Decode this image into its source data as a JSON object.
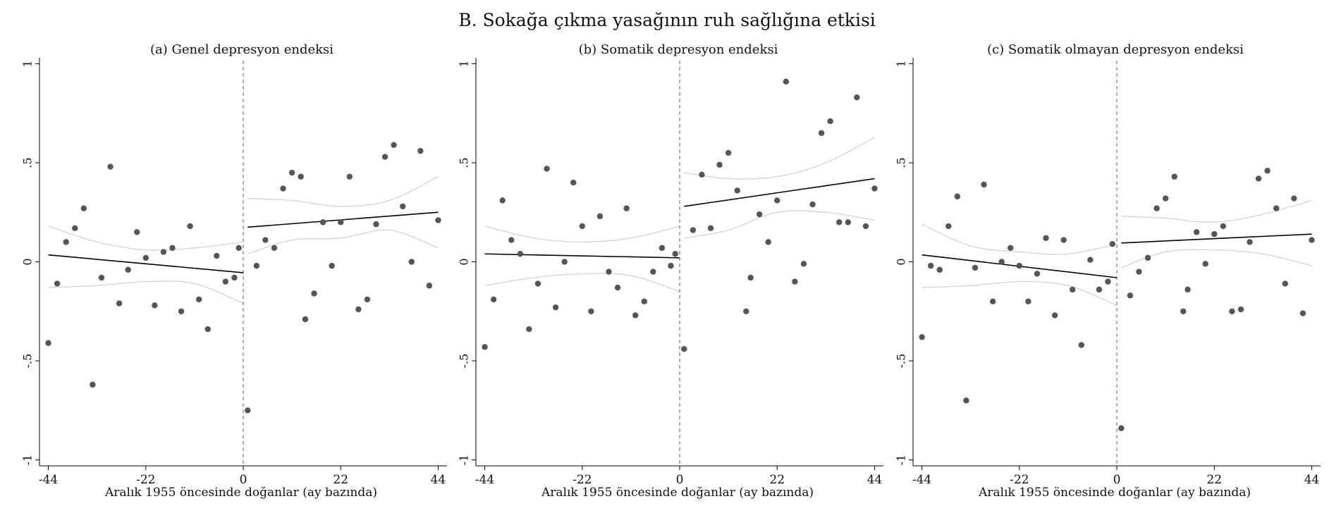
{
  "title": "B. Sokağa çıkma yasağının ruh sağlığına etkisi",
  "colors": {
    "points": "#555555",
    "fit": "#000000",
    "ci": "#d3d3d3",
    "axis": "#000000",
    "cutoff": "#777777"
  },
  "chart_data": [
    {
      "type": "scatter",
      "title": "(a) Genel depresyon endeksi",
      "xlabel": "Aralık 1955 öncesinde doğanlar (ay bazında)",
      "ylabel": "",
      "xlim": [
        -46,
        46
      ],
      "ylim": [
        -1.03,
        1.03
      ],
      "xticks": [
        "-44",
        "-22",
        "0",
        "22",
        "44"
      ],
      "yticks": [
        "-1",
        "-.5",
        "0",
        ".5",
        "1"
      ],
      "cutoff": 0,
      "points": [
        [
          -44,
          -0.41
        ],
        [
          -42,
          -0.11
        ],
        [
          -40,
          0.1
        ],
        [
          -38,
          0.17
        ],
        [
          -36,
          0.27
        ],
        [
          -34,
          -0.62
        ],
        [
          -32,
          -0.08
        ],
        [
          -30,
          0.48
        ],
        [
          -28,
          -0.21
        ],
        [
          -26,
          -0.04
        ],
        [
          -24,
          0.15
        ],
        [
          -22,
          0.02
        ],
        [
          -20,
          -0.22
        ],
        [
          -18,
          0.05
        ],
        [
          -16,
          0.07
        ],
        [
          -14,
          -0.25
        ],
        [
          -12,
          0.18
        ],
        [
          -10,
          -0.19
        ],
        [
          -8,
          -0.34
        ],
        [
          -6,
          0.03
        ],
        [
          -4,
          -0.1
        ],
        [
          -2,
          -0.08
        ],
        [
          -1,
          0.07
        ],
        [
          1,
          -0.75
        ],
        [
          3,
          -0.02
        ],
        [
          5,
          0.11
        ],
        [
          7,
          0.07
        ],
        [
          9,
          0.37
        ],
        [
          11,
          0.45
        ],
        [
          13,
          0.43
        ],
        [
          14,
          -0.29
        ],
        [
          16,
          -0.16
        ],
        [
          18,
          0.2
        ],
        [
          20,
          -0.02
        ],
        [
          22,
          0.2
        ],
        [
          24,
          0.43
        ],
        [
          26,
          -0.24
        ],
        [
          28,
          -0.19
        ],
        [
          30,
          0.19
        ],
        [
          32,
          0.53
        ],
        [
          34,
          0.59
        ],
        [
          36,
          0.28
        ],
        [
          38,
          0.0
        ],
        [
          40,
          0.56
        ],
        [
          42,
          -0.12
        ],
        [
          44,
          0.21
        ]
      ],
      "fit_left": [
        [
          -44,
          0.035
        ],
        [
          0,
          -0.055
        ]
      ],
      "fit_right": [
        [
          1,
          0.175
        ],
        [
          44,
          0.25
        ]
      ],
      "ci_left_upper": [
        [
          -44,
          0.18
        ],
        [
          -33,
          0.1
        ],
        [
          -22,
          0.06
        ],
        [
          -11,
          0.07
        ],
        [
          0,
          0.1
        ]
      ],
      "ci_left_lower": [
        [
          -44,
          -0.13
        ],
        [
          -33,
          -0.12
        ],
        [
          -22,
          -0.1
        ],
        [
          -11,
          -0.11
        ],
        [
          0,
          -0.21
        ]
      ],
      "ci_right_upper": [
        [
          1,
          0.32
        ],
        [
          11,
          0.31
        ],
        [
          22,
          0.28
        ],
        [
          33,
          0.31
        ],
        [
          44,
          0.43
        ]
      ],
      "ci_right_lower": [
        [
          1,
          0.04
        ],
        [
          11,
          0.11
        ],
        [
          22,
          0.12
        ],
        [
          33,
          0.16
        ],
        [
          44,
          0.07
        ]
      ]
    },
    {
      "type": "scatter",
      "title": "(b) Somatik depresyon endeksi",
      "xlabel": "Aralık 1955 öncesinde doğanlar (ay bazında)",
      "ylabel": "",
      "xlim": [
        -46,
        46
      ],
      "ylim": [
        -1.03,
        1.03
      ],
      "xticks": [
        "-44",
        "-22",
        "0",
        "22",
        "44"
      ],
      "yticks": [
        "-1",
        "-.5",
        "0",
        ".5",
        "1"
      ],
      "cutoff": 0,
      "points": [
        [
          -44,
          -0.43
        ],
        [
          -42,
          -0.19
        ],
        [
          -40,
          0.31
        ],
        [
          -38,
          0.11
        ],
        [
          -36,
          0.04
        ],
        [
          -34,
          -0.34
        ],
        [
          -32,
          -0.11
        ],
        [
          -30,
          0.47
        ],
        [
          -28,
          -0.23
        ],
        [
          -26,
          0.0
        ],
        [
          -24,
          0.4
        ],
        [
          -22,
          0.18
        ],
        [
          -20,
          -0.25
        ],
        [
          -18,
          0.23
        ],
        [
          -16,
          -0.05
        ],
        [
          -14,
          -0.13
        ],
        [
          -12,
          0.27
        ],
        [
          -10,
          -0.27
        ],
        [
          -8,
          -0.2
        ],
        [
          -6,
          -0.05
        ],
        [
          -4,
          0.07
        ],
        [
          -2,
          -0.02
        ],
        [
          -1,
          0.04
        ],
        [
          1,
          -0.44
        ],
        [
          3,
          0.16
        ],
        [
          5,
          0.44
        ],
        [
          7,
          0.17
        ],
        [
          9,
          0.49
        ],
        [
          11,
          0.55
        ],
        [
          13,
          0.36
        ],
        [
          15,
          -0.25
        ],
        [
          16,
          -0.08
        ],
        [
          18,
          0.24
        ],
        [
          20,
          0.1
        ],
        [
          22,
          0.31
        ],
        [
          24,
          0.91
        ],
        [
          26,
          -0.1
        ],
        [
          28,
          -0.01
        ],
        [
          30,
          0.29
        ],
        [
          32,
          0.65
        ],
        [
          34,
          0.71
        ],
        [
          36,
          0.2
        ],
        [
          38,
          0.2
        ],
        [
          40,
          0.83
        ],
        [
          42,
          0.18
        ],
        [
          44,
          0.37
        ]
      ],
      "fit_left": [
        [
          -44,
          0.04
        ],
        [
          0,
          0.02
        ]
      ],
      "fit_right": [
        [
          1,
          0.28
        ],
        [
          44,
          0.42
        ]
      ],
      "ci_left_upper": [
        [
          -44,
          0.18
        ],
        [
          -33,
          0.12
        ],
        [
          -22,
          0.1
        ],
        [
          -11,
          0.12
        ],
        [
          0,
          0.18
        ]
      ],
      "ci_left_lower": [
        [
          -44,
          -0.12
        ],
        [
          -33,
          -0.08
        ],
        [
          -22,
          -0.06
        ],
        [
          -11,
          -0.07
        ],
        [
          0,
          -0.15
        ]
      ],
      "ci_right_upper": [
        [
          1,
          0.45
        ],
        [
          11,
          0.42
        ],
        [
          22,
          0.43
        ],
        [
          33,
          0.5
        ],
        [
          44,
          0.63
        ]
      ],
      "ci_right_lower": [
        [
          1,
          0.12
        ],
        [
          11,
          0.16
        ],
        [
          22,
          0.25
        ],
        [
          33,
          0.25
        ],
        [
          44,
          0.21
        ]
      ]
    },
    {
      "type": "scatter",
      "title": "(c) Somatik olmayan depresyon endeksi",
      "xlabel": "Aralık 1955 öncesinde doğanlar (ay bazında)",
      "ylabel": "",
      "xlim": [
        -46,
        46
      ],
      "ylim": [
        -1.03,
        1.03
      ],
      "xticks": [
        "-44",
        "-22",
        "0",
        "22",
        "44"
      ],
      "yticks": [
        "-1",
        "-.5",
        "0",
        ".5",
        "1"
      ],
      "cutoff": 0,
      "points": [
        [
          -44,
          -0.38
        ],
        [
          -42,
          -0.02
        ],
        [
          -40,
          -0.04
        ],
        [
          -38,
          0.18
        ],
        [
          -36,
          0.33
        ],
        [
          -34,
          -0.7
        ],
        [
          -32,
          -0.03
        ],
        [
          -30,
          0.39
        ],
        [
          -28,
          -0.2
        ],
        [
          -26,
          0.0
        ],
        [
          -24,
          0.07
        ],
        [
          -22,
          -0.02
        ],
        [
          -20,
          -0.2
        ],
        [
          -18,
          -0.06
        ],
        [
          -16,
          0.12
        ],
        [
          -14,
          -0.27
        ],
        [
          -12,
          0.11
        ],
        [
          -10,
          -0.14
        ],
        [
          -8,
          -0.42
        ],
        [
          -6,
          0.01
        ],
        [
          -4,
          -0.14
        ],
        [
          -2,
          -0.1
        ],
        [
          -1,
          0.09
        ],
        [
          1,
          -0.84
        ],
        [
          3,
          -0.17
        ],
        [
          5,
          -0.05
        ],
        [
          7,
          0.02
        ],
        [
          9,
          0.27
        ],
        [
          11,
          0.32
        ],
        [
          13,
          0.43
        ],
        [
          15,
          -0.25
        ],
        [
          16,
          -0.14
        ],
        [
          18,
          0.15
        ],
        [
          20,
          -0.01
        ],
        [
          22,
          0.14
        ],
        [
          24,
          0.18
        ],
        [
          26,
          -0.25
        ],
        [
          28,
          -0.24
        ],
        [
          30,
          0.1
        ],
        [
          32,
          0.42
        ],
        [
          34,
          0.46
        ],
        [
          36,
          0.27
        ],
        [
          38,
          -0.11
        ],
        [
          40,
          0.32
        ],
        [
          42,
          -0.26
        ],
        [
          44,
          0.11
        ]
      ],
      "fit_left": [
        [
          -44,
          0.035
        ],
        [
          0,
          -0.08
        ]
      ],
      "fit_right": [
        [
          1,
          0.095
        ],
        [
          44,
          0.14
        ]
      ],
      "ci_left_upper": [
        [
          -44,
          0.19
        ],
        [
          -33,
          0.08
        ],
        [
          -22,
          0.05
        ],
        [
          -11,
          0.04
        ],
        [
          0,
          0.09
        ]
      ],
      "ci_left_lower": [
        [
          -44,
          -0.13
        ],
        [
          -33,
          -0.12
        ],
        [
          -22,
          -0.1
        ],
        [
          -11,
          -0.12
        ],
        [
          0,
          -0.22
        ]
      ],
      "ci_right_upper": [
        [
          1,
          0.23
        ],
        [
          11,
          0.22
        ],
        [
          22,
          0.2
        ],
        [
          33,
          0.24
        ],
        [
          44,
          0.31
        ]
      ],
      "ci_right_lower": [
        [
          1,
          -0.03
        ],
        [
          11,
          0.05
        ],
        [
          22,
          0.06
        ],
        [
          33,
          0.04
        ],
        [
          44,
          -0.02
        ]
      ]
    }
  ]
}
